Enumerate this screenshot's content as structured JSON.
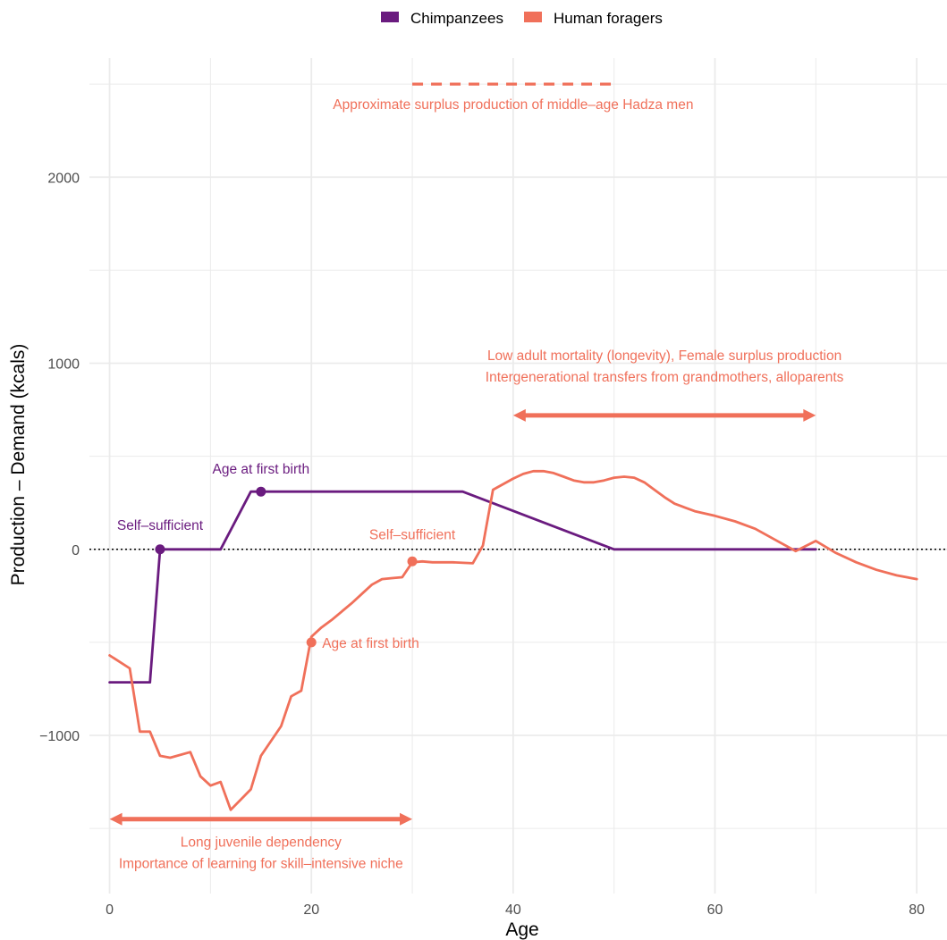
{
  "chart_data": {
    "type": "line",
    "xlabel": "Age",
    "ylabel": "Production – Demand (kcals)",
    "xlim": [
      -2,
      83
    ],
    "ylim": [
      -1850,
      2640
    ],
    "xticks": [
      0,
      20,
      40,
      60,
      80
    ],
    "yticks": [
      -1000,
      0,
      1000,
      2000
    ],
    "x_tick_labels": [
      "0",
      "20",
      "40",
      "60",
      "80"
    ],
    "y_tick_labels": [
      "−1000",
      "0",
      "1000",
      "2000"
    ],
    "grid": true,
    "legend_position": "top",
    "zero_line": "dotted",
    "colors": {
      "Chimpanzees": "#6a1b7f",
      "Human foragers": "#f0705a"
    },
    "series": [
      {
        "name": "Chimpanzees",
        "color": "#6a1b7f",
        "x": [
          0,
          4,
          5,
          11,
          14,
          15,
          35,
          50,
          70
        ],
        "y": [
          -715,
          -715,
          0,
          0,
          310,
          310,
          310,
          0,
          0
        ]
      },
      {
        "name": "Human foragers",
        "color": "#f0705a",
        "x": [
          0,
          2,
          3,
          4,
          5,
          6,
          8,
          9,
          10,
          11,
          12,
          14,
          15,
          17,
          18,
          19,
          20,
          21,
          22,
          24,
          25,
          26,
          27,
          28,
          29,
          30,
          31,
          32,
          34,
          36,
          37,
          38,
          39,
          40,
          41,
          42,
          43,
          44,
          45,
          46,
          47,
          48,
          49,
          50,
          51,
          52,
          53,
          54,
          55,
          56,
          57,
          58,
          60,
          62,
          64,
          66,
          68,
          70,
          72,
          74,
          76,
          78,
          80
        ],
        "y": [
          -570,
          -640,
          -980,
          -980,
          -1110,
          -1120,
          -1090,
          -1220,
          -1270,
          -1250,
          -1400,
          -1290,
          -1110,
          -950,
          -790,
          -760,
          -470,
          -420,
          -380,
          -290,
          -240,
          -190,
          -160,
          -155,
          -150,
          -70,
          -65,
          -70,
          -70,
          -75,
          20,
          320,
          350,
          380,
          405,
          420,
          420,
          410,
          390,
          370,
          360,
          360,
          370,
          385,
          390,
          385,
          360,
          320,
          280,
          245,
          225,
          205,
          180,
          150,
          110,
          50,
          -10,
          45,
          -20,
          -70,
          -110,
          -140,
          -160
        ]
      }
    ],
    "points": [
      {
        "series": "Chimpanzees",
        "x": 5,
        "y": 0,
        "label": "Self–sufficient"
      },
      {
        "series": "Chimpanzees",
        "x": 15,
        "y": 310,
        "label": "Age at first birth"
      },
      {
        "series": "Human foragers",
        "x": 30,
        "y": -65,
        "label": "Self–sufficient"
      },
      {
        "series": "Human foragers",
        "x": 20,
        "y": -500,
        "label": "Age at first birth"
      }
    ],
    "segments": [
      {
        "kind": "dashed",
        "x_from": 30,
        "x_to": 50,
        "y": 2500,
        "label_lines": [
          "Approximate surplus production of middle–age Hadza men"
        ]
      },
      {
        "kind": "double-arrow",
        "x_from": 40,
        "x_to": 70,
        "y": 720,
        "label_lines": [
          "Low adult mortality (longevity), Female surplus production",
          "Intergenerational transfers from grandmothers, alloparents"
        ]
      },
      {
        "kind": "double-arrow",
        "x_from": 0,
        "x_to": 30,
        "y": -1450,
        "label_lines": [
          "Long juvenile dependency",
          "Importance of learning for skill–intensive niche"
        ]
      }
    ]
  }
}
